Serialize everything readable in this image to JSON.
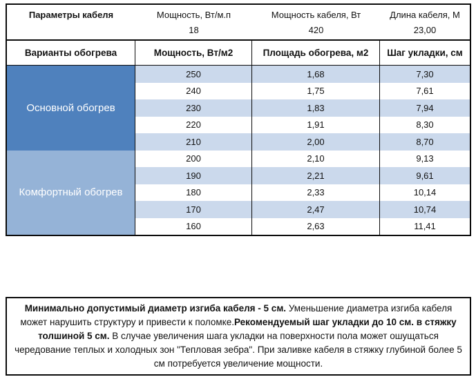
{
  "colors": {
    "main_section_bg": "#4f81bd",
    "comfort_section_bg": "#95b3d7",
    "stripe_row_bg": "#cbd9ec",
    "border": "#0a0a0a",
    "section_text": "#ffffff"
  },
  "top_table": {
    "param_header": "Параметры кабеля",
    "columns": [
      {
        "label": "Мощность, Вт/м.п",
        "value": "18"
      },
      {
        "label": "Мощность кабеля, Вт",
        "value": "420"
      },
      {
        "label": "Длина кабеля, М",
        "value": "23,00"
      }
    ]
  },
  "main_table": {
    "headers": [
      "Варианты обогрева",
      "Мощность, Вт/м2",
      "Площадь обогрева, м2",
      "Шаг укладки, см"
    ],
    "sections": [
      {
        "label": "Основной обогрев",
        "rows": [
          [
            "250",
            "1,68",
            "7,30"
          ],
          [
            "240",
            "1,75",
            "7,61"
          ],
          [
            "230",
            "1,83",
            "7,94"
          ],
          [
            "220",
            "1,91",
            "8,30"
          ],
          [
            "210",
            "2,00",
            "8,70"
          ]
        ]
      },
      {
        "label": "Комфортный обогрев",
        "rows": [
          [
            "200",
            "2,10",
            "9,13"
          ],
          [
            "190",
            "2,21",
            "9,61"
          ],
          [
            "180",
            "2,33",
            "10,14"
          ],
          [
            "170",
            "2,47",
            "10,74"
          ],
          [
            "160",
            "2,63",
            "11,41"
          ]
        ]
      }
    ]
  },
  "note": {
    "segments": [
      {
        "text": "Минимально допустимый диаметр изгиба кабеля - 5 см.",
        "bold": true
      },
      {
        "text": "  Уменьшение диаметра изгиба кабеля может нарушить структуру и привести к поломке.",
        "bold": false
      },
      {
        "text": "Рекомендуемый шаг укладки до 10 см. в стяжку толшиной 5 см.",
        "bold": true
      },
      {
        "text": " В  случае увеличения шага укладки на поверхности пола может ошущаться чередование теплых и холодных зон \"Тепловая зебра\". При заливке кабеля в стяжку глубиной более 5 см потребуется увеличение мощности.",
        "bold": false
      }
    ]
  }
}
